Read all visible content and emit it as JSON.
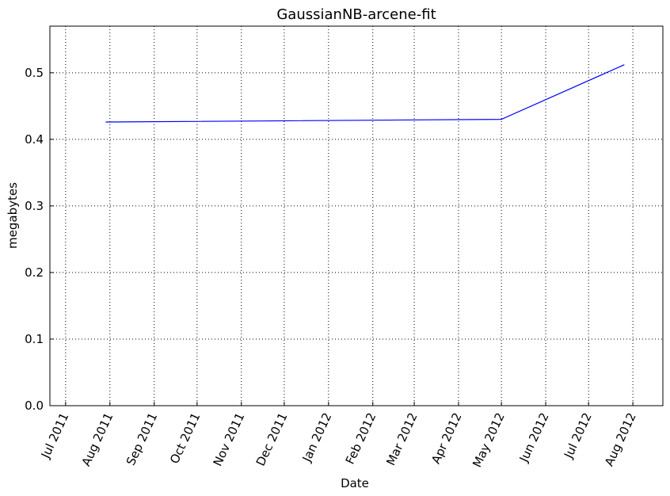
{
  "chart_data": {
    "type": "line",
    "title": "GaussianNB-arcene-fit",
    "xlabel": "Date",
    "ylabel": "megabytes",
    "x_ticks": [
      "Jul 2011",
      "Aug 2011",
      "Sep 2011",
      "Oct 2011",
      "Nov 2011",
      "Dec 2011",
      "Jan 2012",
      "Feb 2012",
      "Mar 2012",
      "Apr 2012",
      "May 2012",
      "Jun 2012",
      "Jul 2012",
      "Aug 2012"
    ],
    "y_ticks": [
      "0.0",
      "0.1",
      "0.2",
      "0.3",
      "0.4",
      "0.5"
    ],
    "ylim": [
      0,
      0.57
    ],
    "grid": true,
    "series": [
      {
        "color": "#0000ff",
        "x": [
          "2011-07-29",
          "2012-05-01",
          "2012-07-26"
        ],
        "y": [
          0.426,
          0.43,
          0.512
        ]
      }
    ]
  }
}
